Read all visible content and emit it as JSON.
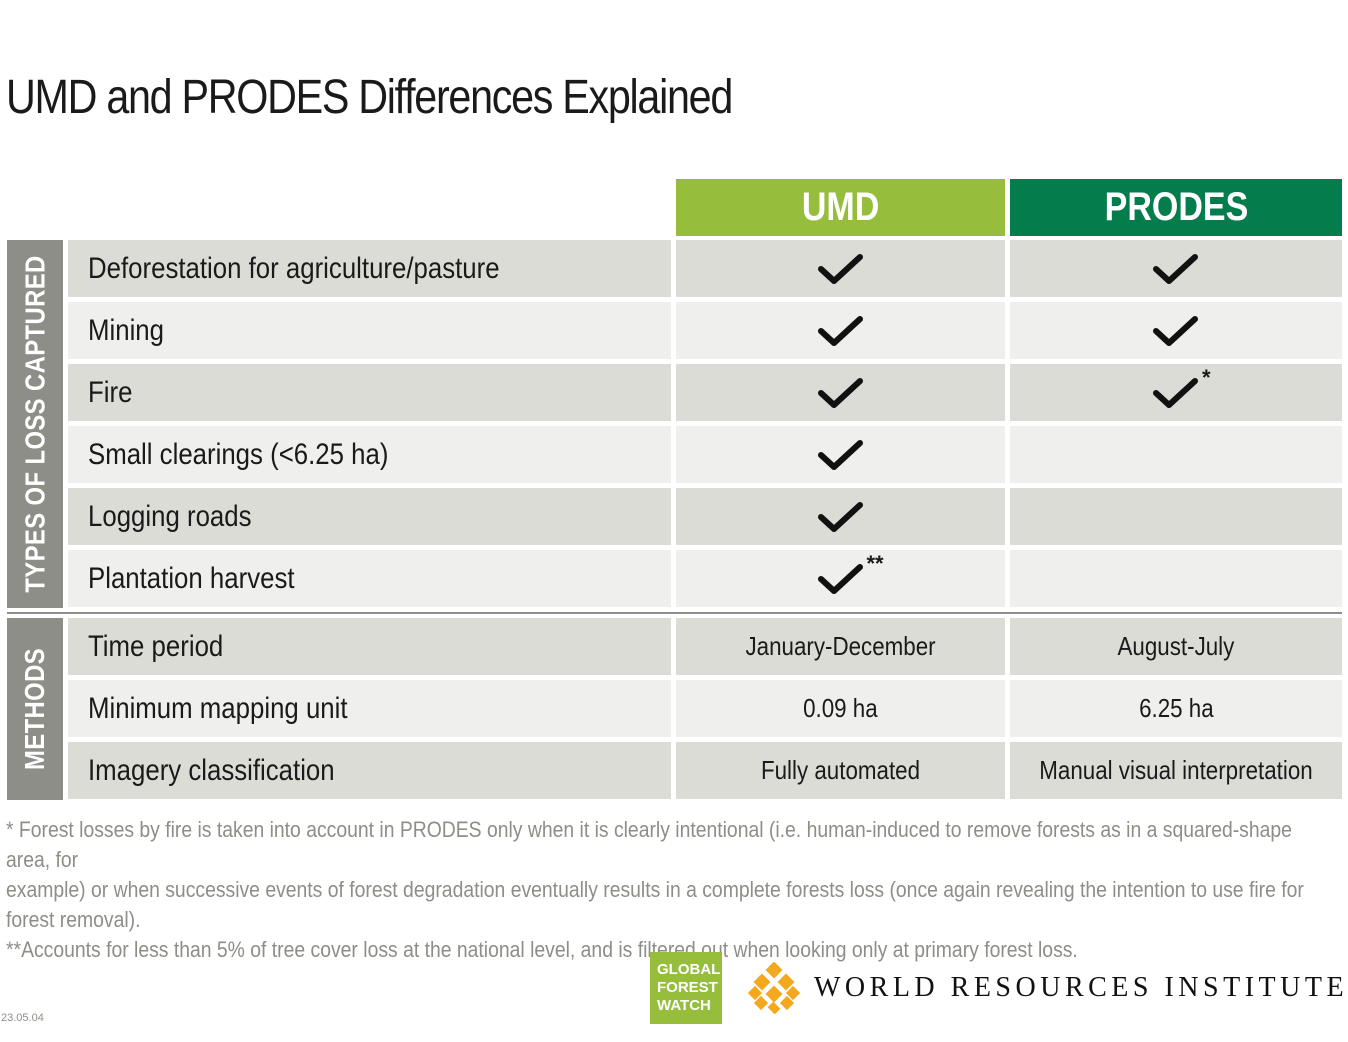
{
  "title": "UMD and PRODES Differences Explained",
  "columns": {
    "umd": "UMD",
    "prodes": "PRODES"
  },
  "colors": {
    "umd": "#97bd3d",
    "prodes": "#057c4c",
    "section": "#8e8e88",
    "row_dark": "#dcdcd7",
    "row_light": "#efefed"
  },
  "sections": {
    "types": "TYPES OF LOSS CAPTURED",
    "methods": "METHODS"
  },
  "types_rows": [
    {
      "label": "Deforestation for agriculture/pasture",
      "umd": "check",
      "prodes": "check"
    },
    {
      "label": "Mining",
      "umd": "check",
      "prodes": "check"
    },
    {
      "label": "Fire",
      "umd": "check",
      "prodes": "check",
      "prodes_mark": "*"
    },
    {
      "label": "Small clearings (<6.25 ha)",
      "umd": "check",
      "prodes": ""
    },
    {
      "label": "Logging roads",
      "umd": "check",
      "prodes": ""
    },
    {
      "label": "Plantation harvest",
      "umd": "check",
      "umd_mark": "**",
      "prodes": ""
    }
  ],
  "methods_rows": [
    {
      "label": "Time period",
      "umd": "January-December",
      "prodes": "August-July"
    },
    {
      "label": "Minimum mapping unit",
      "umd": "0.09 ha",
      "prodes": "6.25 ha"
    },
    {
      "label": "Imagery classification",
      "umd": "Fully automated",
      "prodes": "Manual visual interpretation"
    }
  ],
  "footnotes": {
    "one": "* Forest losses by fire is taken into account in PRODES only when it is clearly intentional (i.e. human-induced to remove forests as in a squared-shape area, for",
    "two": "example) or when successive events of forest degradation eventually results in a complete forests loss (once again revealing the intention to use fire for",
    "three": "forest removal).",
    "four": "**Accounts for less than 5% of tree cover loss at the national level, and is filtered out when looking only at primary forest loss."
  },
  "logos": {
    "gfw_line1": "GLOBAL",
    "gfw_line2": "FOREST",
    "gfw_line3": "WATCH",
    "wri": "WORLD RESOURCES INSTITUTE"
  },
  "version": "23.05.04",
  "icons": {
    "check": "check-icon",
    "wri": "wri-lattice-icon"
  }
}
